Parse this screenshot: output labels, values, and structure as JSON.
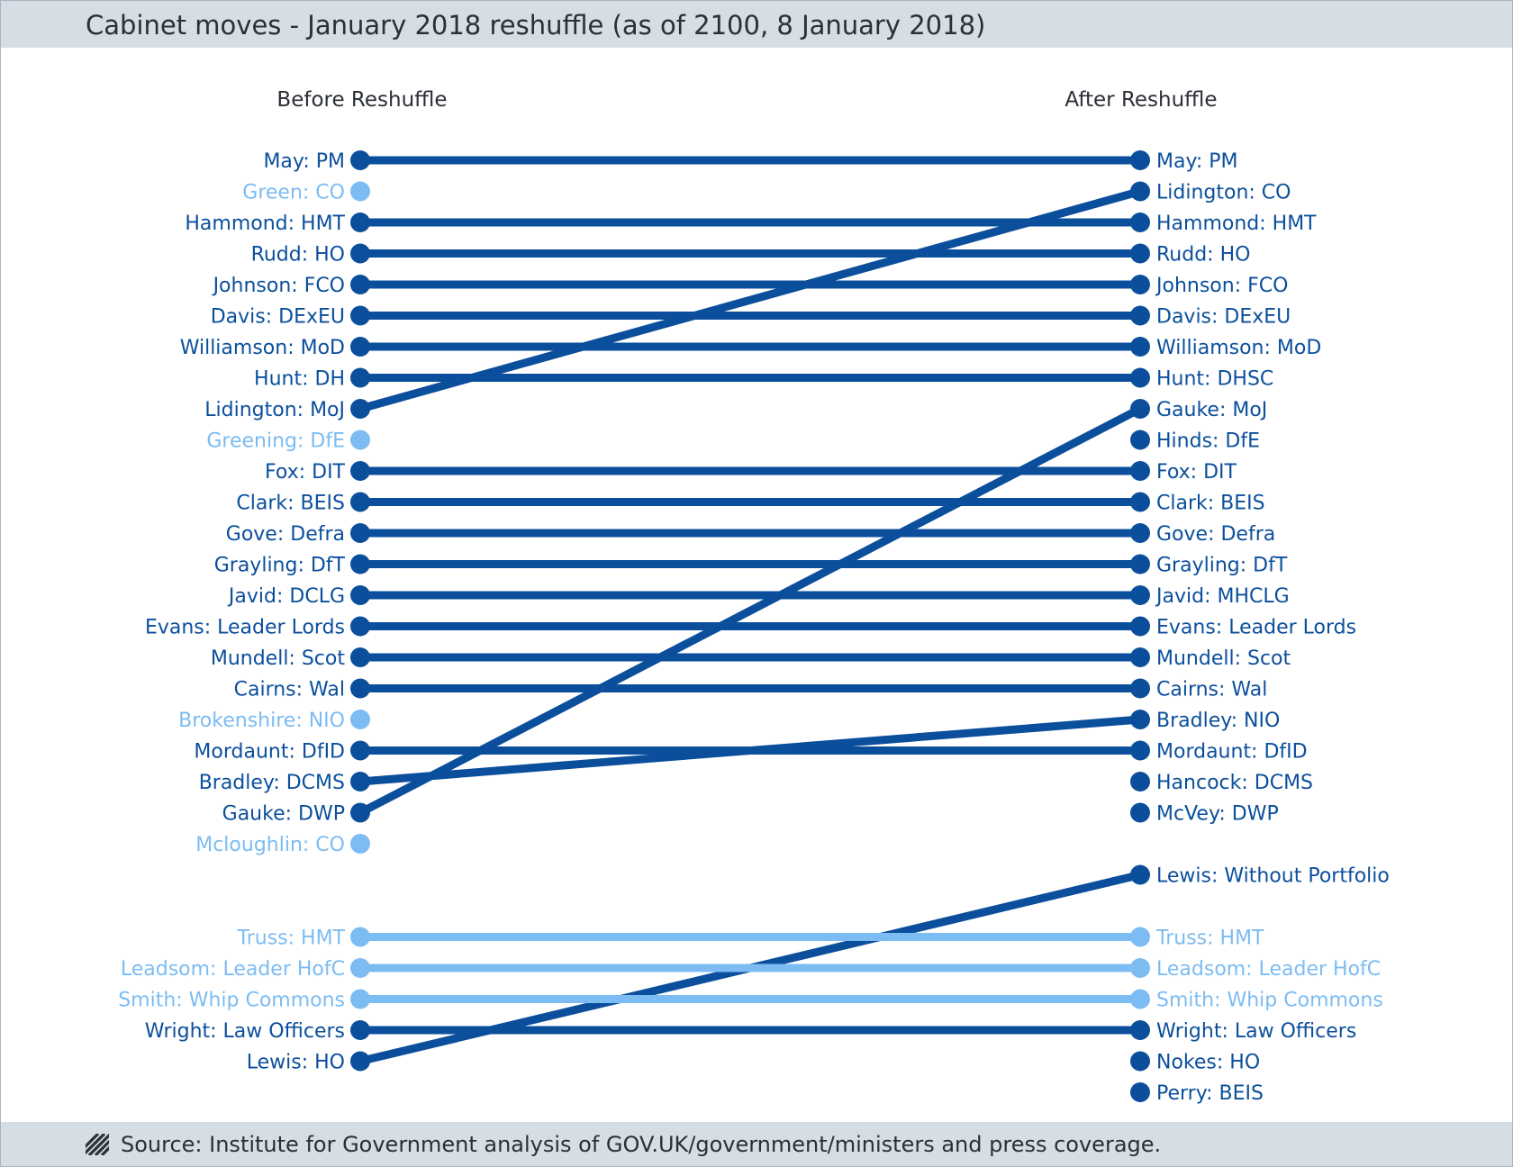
{
  "title": "Cabinet moves - January 2018 reshuffle (as of 2100, 8 January 2018)",
  "source": "Source: Institute for Government analysis of GOV.UK/government/ministers and press coverage.",
  "colors": {
    "dark": "#0b4f9c",
    "light": "#7cbcf3",
    "text": "#2b2f36",
    "band": "#d5dde5"
  },
  "chart_data": {
    "type": "slope",
    "headers": {
      "before": "Before Reshuffle",
      "after": "After Reshuffle"
    },
    "before": [
      {
        "slot": 0,
        "label": "May: PM",
        "tone": "dark"
      },
      {
        "slot": 1,
        "label": "Green: CO",
        "tone": "light"
      },
      {
        "slot": 2,
        "label": "Hammond: HMT",
        "tone": "dark"
      },
      {
        "slot": 3,
        "label": "Rudd: HO",
        "tone": "dark"
      },
      {
        "slot": 4,
        "label": "Johnson: FCO",
        "tone": "dark"
      },
      {
        "slot": 5,
        "label": "Davis: DExEU",
        "tone": "dark"
      },
      {
        "slot": 6,
        "label": "Williamson: MoD",
        "tone": "dark"
      },
      {
        "slot": 7,
        "label": "Hunt: DH",
        "tone": "dark"
      },
      {
        "slot": 8,
        "label": "Lidington: MoJ",
        "tone": "dark"
      },
      {
        "slot": 9,
        "label": "Greening: DfE",
        "tone": "light"
      },
      {
        "slot": 10,
        "label": "Fox: DIT",
        "tone": "dark"
      },
      {
        "slot": 11,
        "label": "Clark: BEIS",
        "tone": "dark"
      },
      {
        "slot": 12,
        "label": "Gove: Defra",
        "tone": "dark"
      },
      {
        "slot": 13,
        "label": "Grayling: DfT",
        "tone": "dark"
      },
      {
        "slot": 14,
        "label": "Javid: DCLG",
        "tone": "dark"
      },
      {
        "slot": 15,
        "label": "Evans: Leader Lords",
        "tone": "dark"
      },
      {
        "slot": 16,
        "label": "Mundell: Scot",
        "tone": "dark"
      },
      {
        "slot": 17,
        "label": "Cairns: Wal",
        "tone": "dark"
      },
      {
        "slot": 18,
        "label": "Brokenshire: NIO",
        "tone": "light"
      },
      {
        "slot": 19,
        "label": "Mordaunt: DfID",
        "tone": "dark"
      },
      {
        "slot": 20,
        "label": "Bradley: DCMS",
        "tone": "dark"
      },
      {
        "slot": 21,
        "label": "Gauke: DWP",
        "tone": "dark"
      },
      {
        "slot": 22,
        "label": "Mcloughlin: CO",
        "tone": "light"
      },
      {
        "slot": 25,
        "label": "Truss: HMT",
        "tone": "light"
      },
      {
        "slot": 26,
        "label": "Leadsom: Leader HofC",
        "tone": "light"
      },
      {
        "slot": 27,
        "label": "Smith: Whip Commons",
        "tone": "light"
      },
      {
        "slot": 28,
        "label": "Wright: Law Officers",
        "tone": "dark"
      },
      {
        "slot": 29,
        "label": "Lewis: HO",
        "tone": "dark"
      }
    ],
    "after": [
      {
        "slot": 0,
        "label": "May: PM",
        "tone": "dark"
      },
      {
        "slot": 1,
        "label": "Lidington: CO",
        "tone": "dark"
      },
      {
        "slot": 2,
        "label": "Hammond: HMT",
        "tone": "dark"
      },
      {
        "slot": 3,
        "label": "Rudd: HO",
        "tone": "dark"
      },
      {
        "slot": 4,
        "label": "Johnson: FCO",
        "tone": "dark"
      },
      {
        "slot": 5,
        "label": "Davis: DExEU",
        "tone": "dark"
      },
      {
        "slot": 6,
        "label": "Williamson: MoD",
        "tone": "dark"
      },
      {
        "slot": 7,
        "label": "Hunt: DHSC",
        "tone": "dark"
      },
      {
        "slot": 8,
        "label": "Gauke: MoJ",
        "tone": "dark"
      },
      {
        "slot": 9,
        "label": "Hinds: DfE",
        "tone": "dark"
      },
      {
        "slot": 10,
        "label": "Fox: DIT",
        "tone": "dark"
      },
      {
        "slot": 11,
        "label": "Clark: BEIS",
        "tone": "dark"
      },
      {
        "slot": 12,
        "label": "Gove: Defra",
        "tone": "dark"
      },
      {
        "slot": 13,
        "label": "Grayling: DfT",
        "tone": "dark"
      },
      {
        "slot": 14,
        "label": "Javid: MHCLG",
        "tone": "dark"
      },
      {
        "slot": 15,
        "label": "Evans: Leader Lords",
        "tone": "dark"
      },
      {
        "slot": 16,
        "label": "Mundell: Scot",
        "tone": "dark"
      },
      {
        "slot": 17,
        "label": "Cairns: Wal",
        "tone": "dark"
      },
      {
        "slot": 18,
        "label": "Bradley: NIO",
        "tone": "dark"
      },
      {
        "slot": 19,
        "label": "Mordaunt: DfID",
        "tone": "dark"
      },
      {
        "slot": 20,
        "label": "Hancock: DCMS",
        "tone": "dark"
      },
      {
        "slot": 21,
        "label": "McVey: DWP",
        "tone": "dark"
      },
      {
        "slot": 23,
        "label": "Lewis: Without Portfolio",
        "tone": "dark"
      },
      {
        "slot": 25,
        "label": "Truss: HMT",
        "tone": "light"
      },
      {
        "slot": 26,
        "label": "Leadsom: Leader HofC",
        "tone": "light"
      },
      {
        "slot": 27,
        "label": "Smith: Whip Commons",
        "tone": "light"
      },
      {
        "slot": 28,
        "label": "Wright: Law Officers",
        "tone": "dark"
      },
      {
        "slot": 29,
        "label": "Nokes: HO",
        "tone": "dark"
      },
      {
        "slot": 30,
        "label": "Perry: BEIS",
        "tone": "dark"
      }
    ],
    "moves": [
      {
        "name": "May",
        "from": 0,
        "to": 0,
        "tone": "dark"
      },
      {
        "name": "Lidington",
        "from": 8,
        "to": 1,
        "tone": "dark"
      },
      {
        "name": "Hammond",
        "from": 2,
        "to": 2,
        "tone": "dark"
      },
      {
        "name": "Rudd",
        "from": 3,
        "to": 3,
        "tone": "dark"
      },
      {
        "name": "Johnson",
        "from": 4,
        "to": 4,
        "tone": "dark"
      },
      {
        "name": "Davis",
        "from": 5,
        "to": 5,
        "tone": "dark"
      },
      {
        "name": "Williamson",
        "from": 6,
        "to": 6,
        "tone": "dark"
      },
      {
        "name": "Hunt",
        "from": 7,
        "to": 7,
        "tone": "dark"
      },
      {
        "name": "Gauke",
        "from": 21,
        "to": 8,
        "tone": "dark"
      },
      {
        "name": "Fox",
        "from": 10,
        "to": 10,
        "tone": "dark"
      },
      {
        "name": "Clark",
        "from": 11,
        "to": 11,
        "tone": "dark"
      },
      {
        "name": "Gove",
        "from": 12,
        "to": 12,
        "tone": "dark"
      },
      {
        "name": "Grayling",
        "from": 13,
        "to": 13,
        "tone": "dark"
      },
      {
        "name": "Javid",
        "from": 14,
        "to": 14,
        "tone": "dark"
      },
      {
        "name": "Evans",
        "from": 15,
        "to": 15,
        "tone": "dark"
      },
      {
        "name": "Mundell",
        "from": 16,
        "to": 16,
        "tone": "dark"
      },
      {
        "name": "Cairns",
        "from": 17,
        "to": 17,
        "tone": "dark"
      },
      {
        "name": "Bradley",
        "from": 20,
        "to": 18,
        "tone": "dark"
      },
      {
        "name": "Mordaunt",
        "from": 19,
        "to": 19,
        "tone": "dark"
      },
      {
        "name": "Lewis",
        "from": 29,
        "to": 23,
        "tone": "dark"
      },
      {
        "name": "Truss",
        "from": 25,
        "to": 25,
        "tone": "light"
      },
      {
        "name": "Leadsom",
        "from": 26,
        "to": 26,
        "tone": "light"
      },
      {
        "name": "Smith",
        "from": 27,
        "to": 27,
        "tone": "light"
      },
      {
        "name": "Wright",
        "from": 28,
        "to": 28,
        "tone": "dark"
      }
    ]
  }
}
